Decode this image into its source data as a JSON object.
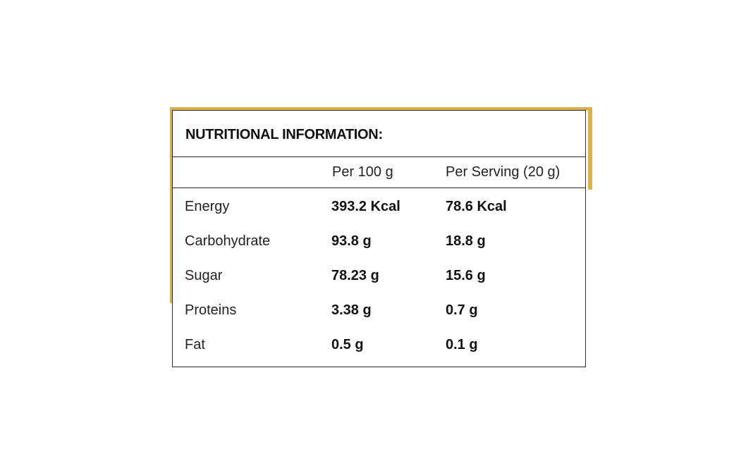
{
  "accent_color": "#d9b24a",
  "border_color": "#2b2b2b",
  "table": {
    "title": "NUTRITIONAL INFORMATION:",
    "columns": [
      "Per 100 g",
      "Per Serving (20 g)"
    ],
    "rows": [
      {
        "name": "Energy",
        "per_100g": "393.2 Kcal",
        "per_serving": "78.6 Kcal"
      },
      {
        "name": "Carbohydrate",
        "per_100g": "93.8 g",
        "per_serving": "18.8 g"
      },
      {
        "name": "Sugar",
        "per_100g": "78.23 g",
        "per_serving": "15.6 g"
      },
      {
        "name": "Proteins",
        "per_100g": "3.38 g",
        "per_serving": "0.7 g"
      },
      {
        "name": "Fat",
        "per_100g": "0.5 g",
        "per_serving": "0.1 g"
      }
    ]
  }
}
